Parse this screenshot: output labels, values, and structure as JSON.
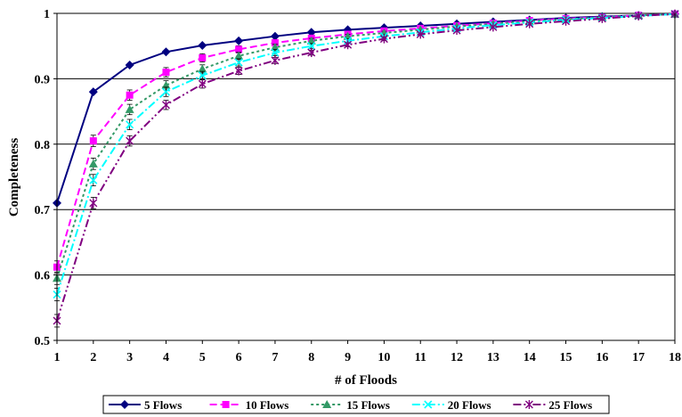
{
  "chart_data": {
    "type": "line",
    "title": "",
    "xlabel": "# of Floods",
    "ylabel": "Completeness",
    "x": [
      1,
      2,
      3,
      4,
      5,
      6,
      7,
      8,
      9,
      10,
      11,
      12,
      13,
      14,
      15,
      16,
      17,
      18
    ],
    "xlim": [
      1,
      18
    ],
    "ylim": [
      0.5,
      1.0
    ],
    "y_ticks": [
      "0.5",
      "0.6",
      "0.7",
      "0.8",
      "0.9",
      "1"
    ],
    "x_ticks": [
      "1",
      "2",
      "3",
      "4",
      "5",
      "6",
      "7",
      "8",
      "9",
      "10",
      "11",
      "12",
      "13",
      "14",
      "15",
      "16",
      "17",
      "18"
    ],
    "grid": "horizontal",
    "legend_position": "bottom",
    "series": [
      {
        "name": "5 Flows",
        "color": "#000080",
        "marker": "diamond",
        "line_style": "solid",
        "values": [
          0.71,
          0.88,
          0.921,
          0.941,
          0.951,
          0.958,
          0.965,
          0.971,
          0.975,
          0.978,
          0.981,
          0.984,
          0.987,
          0.99,
          0.993,
          0.995,
          0.997,
          0.999
        ]
      },
      {
        "name": "10 Flows",
        "color": "#FF00FF",
        "marker": "square",
        "line_style": "dash",
        "values": [
          0.612,
          0.805,
          0.875,
          0.91,
          0.932,
          0.945,
          0.955,
          0.962,
          0.968,
          0.973,
          0.977,
          0.981,
          0.985,
          0.989,
          0.992,
          0.994,
          0.997,
          0.999
        ]
      },
      {
        "name": "15 Flows",
        "color": "#339966",
        "marker": "triangle",
        "line_style": "dot",
        "values": [
          0.595,
          0.77,
          0.853,
          0.89,
          0.915,
          0.935,
          0.948,
          0.958,
          0.965,
          0.97,
          0.975,
          0.98,
          0.984,
          0.988,
          0.991,
          0.994,
          0.997,
          0.999
        ]
      },
      {
        "name": "20 Flows",
        "color": "#00FFFF",
        "marker": "x",
        "line_style": "dashdot",
        "values": [
          0.57,
          0.745,
          0.83,
          0.88,
          0.905,
          0.925,
          0.94,
          0.95,
          0.958,
          0.965,
          0.971,
          0.977,
          0.982,
          0.986,
          0.99,
          0.993,
          0.996,
          0.999
        ]
      },
      {
        "name": "25 Flows",
        "color": "#800080",
        "marker": "star",
        "line_style": "dashdotdot",
        "values": [
          0.53,
          0.71,
          0.805,
          0.86,
          0.892,
          0.912,
          0.928,
          0.94,
          0.952,
          0.961,
          0.968,
          0.974,
          0.979,
          0.984,
          0.988,
          0.992,
          0.996,
          0.999
        ]
      }
    ]
  }
}
